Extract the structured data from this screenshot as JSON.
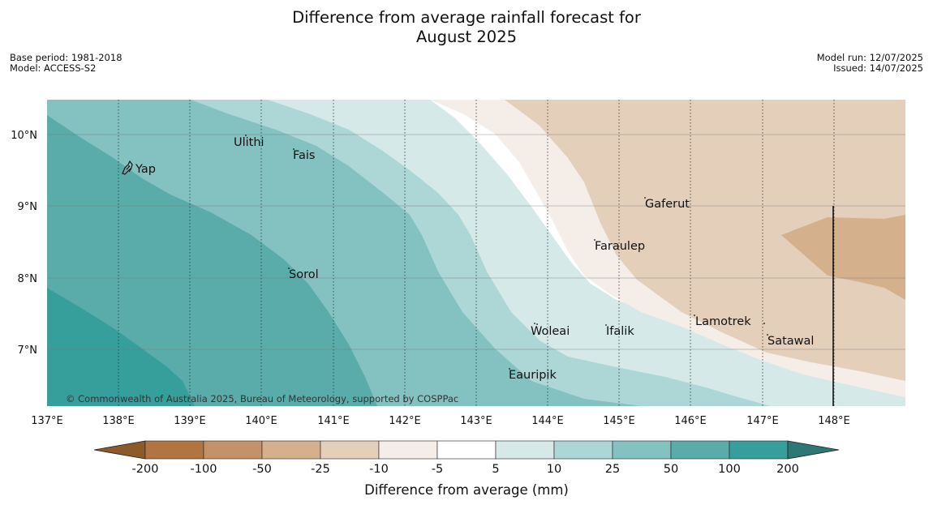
{
  "title_line1": "Difference from average rainfall forecast for",
  "title_line2": "August 2025",
  "base_period": "Base period: 1981-2018",
  "model": "Model: ACCESS-S2",
  "model_run": "Model run: 12/07/2025",
  "issued": "Issued: 14/07/2025",
  "copyright": "© Commonwealth of Australia 2025, Bureau of Meteorology, supported by COSPPac",
  "map": {
    "lon_range": [
      137,
      149
    ],
    "lat_range": [
      6.2,
      10.5
    ],
    "lon_ticks": [
      "137°E",
      "138°E",
      "139°E",
      "140°E",
      "141°E",
      "142°E",
      "143°E",
      "144°E",
      "145°E",
      "146°E",
      "147°E",
      "148°E"
    ],
    "lat_ticks": [
      "10°N",
      "9°N",
      "8°N",
      "7°N"
    ],
    "places": [
      {
        "name": "Yap",
        "lon": 138.24,
        "lat": 9.53
      },
      {
        "name": "Ulithi",
        "lon": 139.62,
        "lat": 9.9
      },
      {
        "name": "Fais",
        "lon": 140.45,
        "lat": 9.73
      },
      {
        "name": "Gaferut",
        "lon": 145.37,
        "lat": 9.02
      },
      {
        "name": "Faraulep",
        "lon": 144.67,
        "lat": 8.43
      },
      {
        "name": "Sorol",
        "lon": 140.39,
        "lat": 8.05
      },
      {
        "name": "Lamotrek",
        "lon": 146.06,
        "lat": 7.39
      },
      {
        "name": "Woleai",
        "lon": 143.78,
        "lat": 7.26
      },
      {
        "name": "Ifalik",
        "lon": 144.83,
        "lat": 7.26
      },
      {
        "name": "Satawal",
        "lon": 147.07,
        "lat": 7.12
      },
      {
        "name": "Eauripik",
        "lon": 143.5,
        "lat": 6.62
      }
    ],
    "boundary_line": {
      "lon": 148.0,
      "lat_range": [
        6.2,
        9.0
      ]
    }
  },
  "legend": {
    "title": "Difference from average (mm)",
    "ticks": [
      "-200",
      "-100",
      "-50",
      "-25",
      "-10",
      "-5",
      "5",
      "10",
      "25",
      "50",
      "100",
      "200"
    ],
    "colors": [
      "#8f5a2a",
      "#b07540",
      "#c49268",
      "#d4b08c",
      "#e4cfbb",
      "#f4ede8",
      "#ffffff",
      "#d5e9e8",
      "#add6d6",
      "#84c2c1",
      "#5aacab",
      "#369e9b",
      "#2d7775"
    ]
  }
}
